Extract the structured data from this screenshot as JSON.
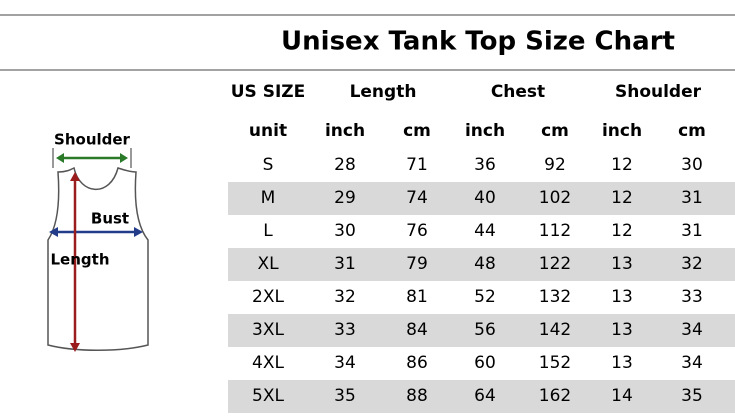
{
  "title": "Unisex Tank Top Size Chart",
  "diagram": {
    "shoulder": "Shoulder",
    "bust": "Bust",
    "length": "Length"
  },
  "table": {
    "groups": [
      "US SIZE",
      "Length",
      "Chest",
      "Shoulder"
    ],
    "units": [
      "unit",
      "inch",
      "cm",
      "inch",
      "cm",
      "inch",
      "cm"
    ],
    "rows": [
      [
        "S",
        28,
        71,
        36,
        92,
        12,
        30
      ],
      [
        "M",
        29,
        74,
        40,
        102,
        12,
        31
      ],
      [
        "L",
        30,
        76,
        44,
        112,
        12,
        31
      ],
      [
        "XL",
        31,
        79,
        48,
        122,
        13,
        32
      ],
      [
        "2XL",
        32,
        81,
        52,
        132,
        13,
        33
      ],
      [
        "3XL",
        33,
        84,
        56,
        142,
        13,
        34
      ],
      [
        "4XL",
        34,
        86,
        60,
        152,
        13,
        34
      ],
      [
        "5XL",
        35,
        88,
        64,
        162,
        14,
        35
      ]
    ]
  }
}
